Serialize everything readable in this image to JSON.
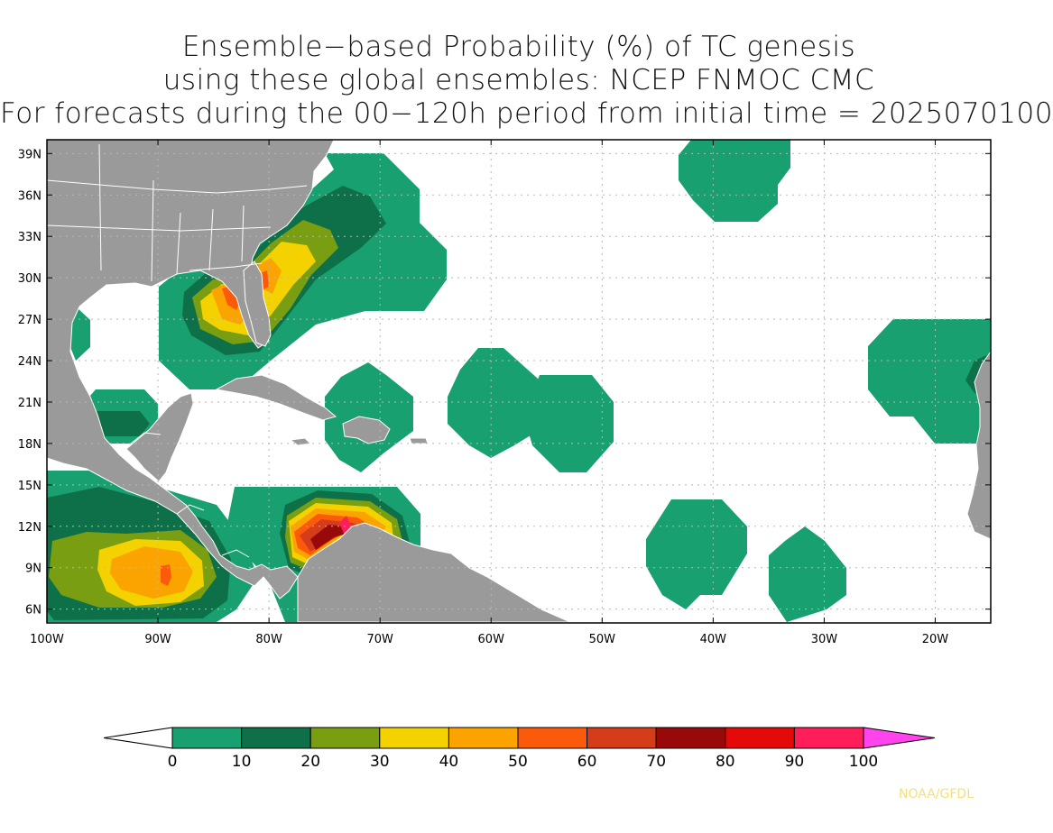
{
  "title": {
    "line1": "Ensemble−based Probability (%) of TC genesis",
    "line2": "using these global ensembles:   NCEP FNMOC CMC",
    "line3": "For forecasts during the 00−120h period from initial time = 2025070100"
  },
  "map": {
    "lat_labels": [
      "39N",
      "36N",
      "33N",
      "30N",
      "27N",
      "24N",
      "21N",
      "18N",
      "15N",
      "12N",
      "9N",
      "6N"
    ],
    "lon_labels": [
      "100W",
      "90W",
      "80W",
      "70W",
      "60W",
      "50W",
      "40W",
      "30W",
      "20W"
    ],
    "lat_range": [
      5,
      40
    ],
    "lon_range": [
      -100,
      -15
    ],
    "grid": "dotted"
  },
  "colorbar": {
    "labels": [
      "0",
      "10",
      "20",
      "30",
      "40",
      "50",
      "60",
      "70",
      "80",
      "90",
      "100"
    ],
    "colors": [
      "#18a070",
      "#0e7048",
      "#7a9e12",
      "#f4d200",
      "#fba400",
      "#fb5a0a",
      "#d43c1a",
      "#980a0a",
      "#e40a0a",
      "#ff1e5a"
    ],
    "under_color": "#ffffff",
    "over_color": "#ff44ee"
  },
  "colors": {
    "land": "#9a9a9a",
    "border": "#ffffff"
  },
  "credit": "NOAA/GFDL"
}
